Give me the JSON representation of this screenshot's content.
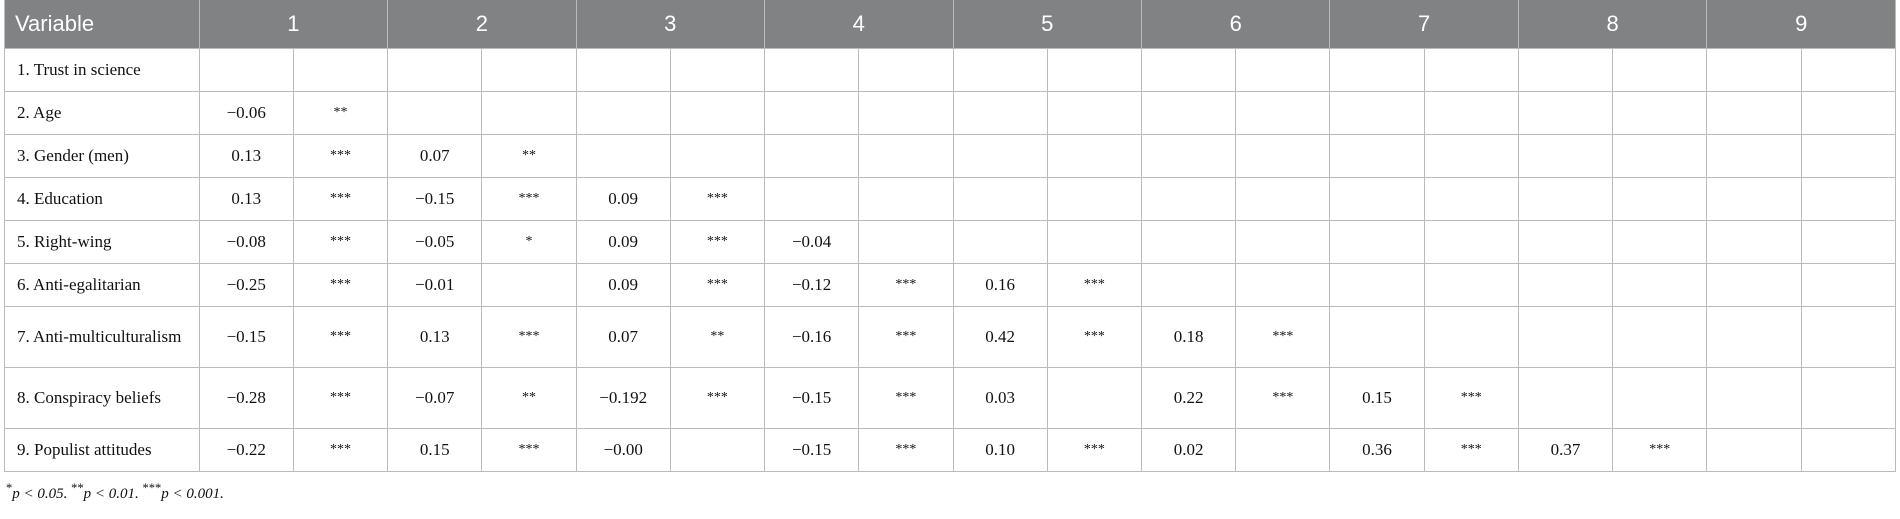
{
  "table": {
    "headers": [
      "Variable",
      "1",
      "2",
      "3",
      "4",
      "5",
      "6",
      "7",
      "8",
      "9"
    ],
    "rows": [
      {
        "label": "1. Trust in science",
        "cells": [
          [
            "",
            ""
          ],
          [
            "",
            ""
          ],
          [
            "",
            ""
          ],
          [
            "",
            ""
          ],
          [
            "",
            ""
          ],
          [
            "",
            ""
          ],
          [
            "",
            ""
          ],
          [
            "",
            ""
          ],
          [
            "",
            ""
          ]
        ]
      },
      {
        "label": "2. Age",
        "cells": [
          [
            "−0.06",
            "**"
          ],
          [
            "",
            ""
          ],
          [
            "",
            ""
          ],
          [
            "",
            ""
          ],
          [
            "",
            ""
          ],
          [
            "",
            ""
          ],
          [
            "",
            ""
          ],
          [
            "",
            ""
          ],
          [
            "",
            ""
          ]
        ]
      },
      {
        "label": "3. Gender (men)",
        "cells": [
          [
            "0.13",
            "***"
          ],
          [
            "0.07",
            "**"
          ],
          [
            "",
            ""
          ],
          [
            "",
            ""
          ],
          [
            "",
            ""
          ],
          [
            "",
            ""
          ],
          [
            "",
            ""
          ],
          [
            "",
            ""
          ],
          [
            "",
            ""
          ]
        ]
      },
      {
        "label": "4. Education",
        "cells": [
          [
            "0.13",
            "***"
          ],
          [
            "−0.15",
            "***"
          ],
          [
            "0.09",
            "***"
          ],
          [
            "",
            ""
          ],
          [
            "",
            ""
          ],
          [
            "",
            ""
          ],
          [
            "",
            ""
          ],
          [
            "",
            ""
          ],
          [
            "",
            ""
          ]
        ]
      },
      {
        "label": "5. Right-wing",
        "cells": [
          [
            "−0.08",
            "***"
          ],
          [
            "−0.05",
            "*"
          ],
          [
            "0.09",
            "***"
          ],
          [
            "−0.04",
            ""
          ],
          [
            "",
            ""
          ],
          [
            "",
            ""
          ],
          [
            "",
            ""
          ],
          [
            "",
            ""
          ],
          [
            "",
            ""
          ]
        ]
      },
      {
        "label": "6. Anti-egalitarian",
        "cells": [
          [
            "−0.25",
            "***"
          ],
          [
            "−0.01",
            ""
          ],
          [
            "0.09",
            "***"
          ],
          [
            "−0.12",
            "***"
          ],
          [
            "0.16",
            "***"
          ],
          [
            "",
            ""
          ],
          [
            "",
            ""
          ],
          [
            "",
            ""
          ],
          [
            "",
            ""
          ]
        ]
      },
      {
        "label": "7. Anti-multiculturalism",
        "cells": [
          [
            "−0.15",
            "***"
          ],
          [
            "0.13",
            "***"
          ],
          [
            "0.07",
            "**"
          ],
          [
            "−0.16",
            "***"
          ],
          [
            "0.42",
            "***"
          ],
          [
            "0.18",
            "***"
          ],
          [
            "",
            ""
          ],
          [
            "",
            ""
          ],
          [
            "",
            ""
          ]
        ]
      },
      {
        "label": "8. Conspiracy beliefs",
        "cells": [
          [
            "−0.28",
            "***"
          ],
          [
            "−0.07",
            "**"
          ],
          [
            "−0.192",
            "***"
          ],
          [
            "−0.15",
            "***"
          ],
          [
            "0.03",
            ""
          ],
          [
            "0.22",
            "***"
          ],
          [
            "0.15",
            "***"
          ],
          [
            "",
            ""
          ],
          [
            "",
            ""
          ]
        ]
      },
      {
        "label": "9. Populist attitudes",
        "cells": [
          [
            "−0.22",
            "***"
          ],
          [
            "0.15",
            "***"
          ],
          [
            "−0.00",
            ""
          ],
          [
            "−0.15",
            "***"
          ],
          [
            "0.10",
            "***"
          ],
          [
            "0.02",
            ""
          ],
          [
            "0.36",
            "***"
          ],
          [
            "0.37",
            "***"
          ],
          [
            "",
            ""
          ]
        ]
      }
    ]
  },
  "footnote": {
    "parts": [
      {
        "sup": "*",
        "text": "p < 0.05."
      },
      {
        "sup": "**",
        "text": "p < 0.01."
      },
      {
        "sup": "***",
        "text": "p < 0.001."
      }
    ]
  }
}
